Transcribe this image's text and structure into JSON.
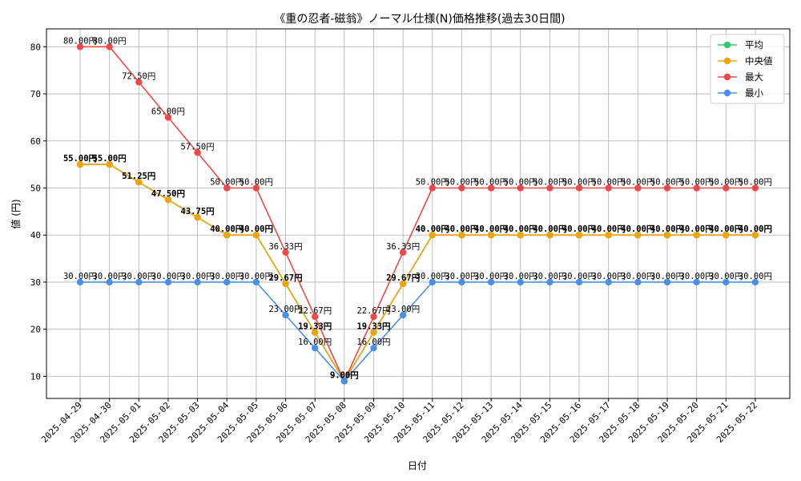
{
  "chart_data": {
    "type": "line",
    "title": "《重の忍者-磁翁》ノーマル仕様(N)価格推移(過去30日間)",
    "xlabel": "日付",
    "ylabel": "値 (円)",
    "ylim": [
      5.3,
      83.8
    ],
    "yticks": [
      10,
      20,
      30,
      40,
      50,
      60,
      70,
      80
    ],
    "grid": true,
    "legend_position": "top-right",
    "value_suffix": "円",
    "categories": [
      "2025-04-29",
      "2025-04-30",
      "2025-05-01",
      "2025-05-02",
      "2025-05-03",
      "2025-05-04",
      "2025-05-05",
      "2025-05-06",
      "2025-05-07",
      "2025-05-08",
      "2025-05-09",
      "2025-05-10",
      "2025-05-11",
      "2025-05-12",
      "2025-05-13",
      "2025-05-14",
      "2025-05-15",
      "2025-05-16",
      "2025-05-17",
      "2025-05-18",
      "2025-05-19",
      "2025-05-20",
      "2025-05-21",
      "2025-05-22"
    ],
    "series": [
      {
        "name": "平均",
        "color": "#2ecc71",
        "values": [
          55.0,
          55.0,
          51.25,
          47.5,
          43.75,
          40.0,
          40.0,
          29.67,
          19.33,
          9.0,
          19.33,
          29.67,
          40.0,
          40.0,
          40.0,
          40.0,
          40.0,
          40.0,
          40.0,
          40.0,
          40.0,
          40.0,
          40.0,
          40.0
        ]
      },
      {
        "name": "中央値",
        "color": "#f0a30a",
        "values": [
          55.0,
          55.0,
          51.25,
          47.5,
          43.75,
          40.0,
          40.0,
          29.67,
          19.33,
          9.0,
          19.33,
          29.67,
          40.0,
          40.0,
          40.0,
          40.0,
          40.0,
          40.0,
          40.0,
          40.0,
          40.0,
          40.0,
          40.0,
          40.0
        ]
      },
      {
        "name": "最大",
        "color": "#f04848",
        "values": [
          80.0,
          80.0,
          72.5,
          65.0,
          57.5,
          50.0,
          50.0,
          36.33,
          22.67,
          9.0,
          22.67,
          36.33,
          50.0,
          50.0,
          50.0,
          50.0,
          50.0,
          50.0,
          50.0,
          50.0,
          50.0,
          50.0,
          50.0,
          50.0
        ]
      },
      {
        "name": "最小",
        "color": "#4a90e8",
        "values": [
          30.0,
          30.0,
          30.0,
          30.0,
          30.0,
          30.0,
          30.0,
          23.0,
          16.0,
          9.0,
          16.0,
          23.0,
          30.0,
          30.0,
          30.0,
          30.0,
          30.0,
          30.0,
          30.0,
          30.0,
          30.0,
          30.0,
          30.0,
          30.0
        ]
      }
    ]
  }
}
